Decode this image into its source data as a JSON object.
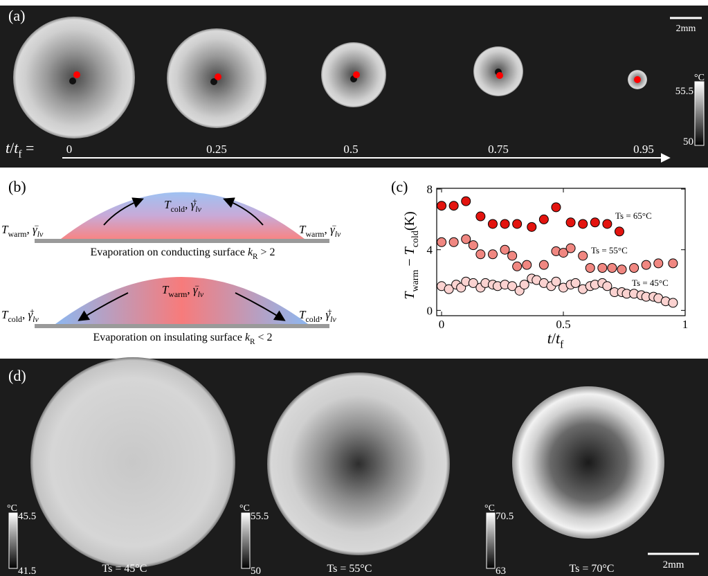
{
  "panel_a": {
    "label": "(a)",
    "scale_bar": "2mm",
    "colorbar": {
      "unit": "°C",
      "max": 55.5,
      "min": 50
    },
    "time_label": [
      {
        "text": "t",
        "style": "italic"
      },
      {
        "text": "/"
      },
      {
        "text": "t",
        "style": "italic"
      },
      {
        "text": "f",
        "style": "sub"
      },
      {
        "text": " ="
      }
    ],
    "times": [
      0,
      0.25,
      0.5,
      0.75,
      0.95
    ]
  },
  "panel_b": {
    "label": "(b)",
    "conducting": {
      "top": [
        {
          "text": "T",
          "style": "italic"
        },
        {
          "text": "cold",
          "style": "sub"
        },
        {
          "text": ", "
        },
        {
          "text": "γ",
          "style": "italic"
        },
        {
          "text": "lv",
          "style": "sub-italic"
        },
        {
          "text": "+",
          "style": "sup-stack"
        }
      ],
      "left": [
        {
          "text": "T",
          "style": "italic"
        },
        {
          "text": "warm",
          "style": "sub"
        },
        {
          "text": ", "
        },
        {
          "text": "γ",
          "style": "italic"
        },
        {
          "text": "lv",
          "style": "sub-italic"
        },
        {
          "text": "−",
          "style": "sup-stack"
        }
      ],
      "right": [
        {
          "text": "T",
          "style": "italic"
        },
        {
          "text": "warm",
          "style": "sub"
        },
        {
          "text": ", "
        },
        {
          "text": "γ",
          "style": "italic"
        },
        {
          "text": "lv",
          "style": "sub-italic"
        },
        {
          "text": "−",
          "style": "sup-stack"
        }
      ],
      "caption": [
        {
          "text": "Evaporation on conducting surface "
        },
        {
          "text": "k",
          "style": "italic"
        },
        {
          "text": "R",
          "style": "sub"
        },
        {
          "text": " > 2"
        }
      ]
    },
    "insulating": {
      "top": [
        {
          "text": "T",
          "style": "italic"
        },
        {
          "text": "warm",
          "style": "sub"
        },
        {
          "text": ", "
        },
        {
          "text": "γ",
          "style": "italic"
        },
        {
          "text": "lv",
          "style": "sub-italic"
        },
        {
          "text": "−",
          "style": "sup-stack"
        }
      ],
      "left": [
        {
          "text": "T",
          "style": "italic"
        },
        {
          "text": "cold",
          "style": "sub"
        },
        {
          "text": ", "
        },
        {
          "text": "γ",
          "style": "italic"
        },
        {
          "text": "lv",
          "style": "sub-italic"
        },
        {
          "text": "+",
          "style": "sup-stack"
        }
      ],
      "right": [
        {
          "text": "T",
          "style": "italic"
        },
        {
          "text": "cold",
          "style": "sub"
        },
        {
          "text": ", "
        },
        {
          "text": "γ",
          "style": "italic"
        },
        {
          "text": "lv",
          "style": "sub-italic"
        },
        {
          "text": "+",
          "style": "sup-stack"
        }
      ],
      "caption": [
        {
          "text": "Evaporation on insulating surface "
        },
        {
          "text": "k",
          "style": "italic"
        },
        {
          "text": "R",
          "style": "sub"
        },
        {
          "text": " < 2"
        }
      ]
    }
  },
  "panel_c": {
    "label": "(c)"
  },
  "chart_data": {
    "type": "scatter",
    "x_label": [
      {
        "text": "t",
        "style": "italic"
      },
      {
        "text": "/"
      },
      {
        "text": "t",
        "style": "italic"
      },
      {
        "text": "f",
        "style": "sub"
      }
    ],
    "y_label": [
      {
        "text": "T",
        "style": "italic"
      },
      {
        "text": "warm",
        "style": "sub"
      },
      {
        "text": " − "
      },
      {
        "text": "T",
        "style": "italic"
      },
      {
        "text": "cold",
        "style": "sub"
      },
      {
        "text": "(K)"
      }
    ],
    "xlim": [
      -0.02,
      1
    ],
    "ylim": [
      -0.35,
      8.05
    ],
    "xticks": [
      0,
      0.5,
      1
    ],
    "yticks": [
      0,
      4,
      8
    ],
    "series": [
      {
        "name": "Ts = 65°C",
        "color": "#e3140f",
        "x": [
          0,
          0.05,
          0.1,
          0.16,
          0.21,
          0.26,
          0.31,
          0.37,
          0.42,
          0.47,
          0.53,
          0.58,
          0.63,
          0.68,
          0.73
        ],
        "values": [
          6.9,
          6.9,
          7.2,
          6.2,
          5.7,
          5.7,
          5.7,
          5.5,
          6.0,
          6.8,
          5.8,
          5.7,
          5.8,
          5.7,
          5.2
        ]
      },
      {
        "name": "Ts = 55°C",
        "color": "#f08781",
        "x": [
          0,
          0.05,
          0.1,
          0.13,
          0.16,
          0.21,
          0.26,
          0.29,
          0.31,
          0.35,
          0.42,
          0.47,
          0.5,
          0.53,
          0.58,
          0.61,
          0.66,
          0.7,
          0.74,
          0.79,
          0.84,
          0.89,
          0.95
        ],
        "values": [
          4.5,
          4.5,
          4.7,
          4.3,
          3.7,
          3.7,
          4.0,
          3.6,
          2.9,
          3.0,
          3.0,
          3.9,
          3.8,
          4.1,
          3.6,
          2.8,
          2.8,
          2.8,
          2.7,
          2.8,
          3.0,
          3.1,
          3.1
        ]
      },
      {
        "name": "Ts = 45°C",
        "color": "#fbd2d0",
        "x": [
          0,
          0.03,
          0.06,
          0.08,
          0.1,
          0.13,
          0.16,
          0.18,
          0.21,
          0.23,
          0.26,
          0.29,
          0.32,
          0.34,
          0.37,
          0.39,
          0.42,
          0.45,
          0.47,
          0.5,
          0.53,
          0.55,
          0.58,
          0.61,
          0.63,
          0.66,
          0.68,
          0.71,
          0.74,
          0.76,
          0.79,
          0.82,
          0.84,
          0.87,
          0.89,
          0.92,
          0.95
        ],
        "values": [
          1.6,
          1.4,
          1.7,
          1.5,
          1.9,
          1.8,
          1.5,
          1.8,
          1.7,
          1.6,
          1.7,
          1.6,
          1.3,
          1.7,
          2.1,
          2.0,
          1.8,
          1.6,
          1.9,
          1.5,
          1.7,
          1.8,
          1.4,
          1.6,
          1.7,
          1.8,
          1.6,
          1.2,
          1.2,
          1.1,
          1.1,
          1.0,
          0.9,
          0.9,
          0.8,
          0.6,
          0.5
        ]
      }
    ]
  },
  "panel_d": {
    "label": "(d)",
    "scale_bar": "2mm",
    "drops": [
      {
        "caption": "Ts = 45°C",
        "unit": "°C",
        "max": 45.5,
        "min": 41.5
      },
      {
        "caption": "Ts = 55°C",
        "unit": "°C",
        "max": 55.5,
        "min": 50
      },
      {
        "caption": "Ts = 70°C",
        "unit": "°C",
        "max": 70.5,
        "min": 63
      }
    ]
  }
}
